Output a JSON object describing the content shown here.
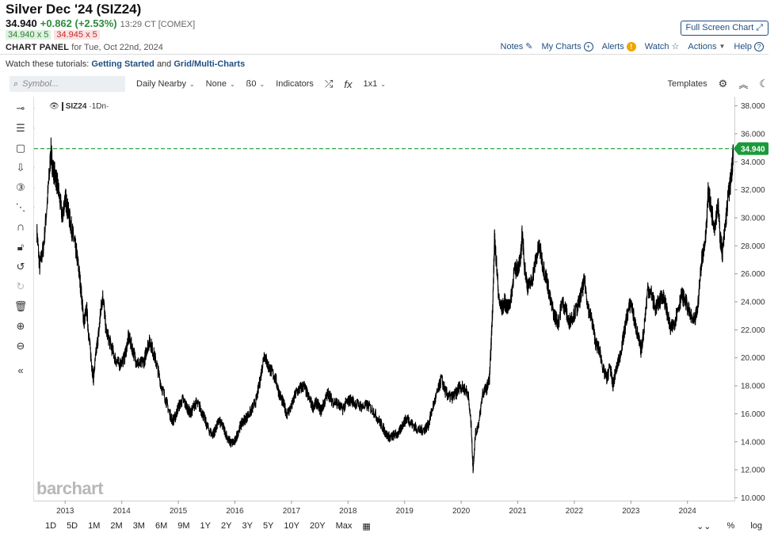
{
  "header": {
    "title": "Silver Dec '24 (SIZ24)",
    "last": "34.940",
    "change": "+0.862 (+2.53%)",
    "time": "13:29 CT [COMEX]",
    "bid": "34.940 x 5",
    "ask": "34.945 x 5",
    "panel_label": "CHART PANEL",
    "panel_date": "for Tue, Oct 22nd, 2024",
    "fullscreen": "Full Screen Chart"
  },
  "nav": {
    "notes": "Notes",
    "mycharts": "My Charts",
    "alerts": "Alerts",
    "watch": "Watch",
    "actions": "Actions",
    "help": "Help"
  },
  "tutorials": {
    "prefix": "Watch these tutorials:",
    "link1": "Getting Started",
    "joiner": "and",
    "link2": "Grid/Multi-Charts"
  },
  "toolbar": {
    "search_placeholder": "Symbol...",
    "daily": "Daily Nearby",
    "none": "None",
    "bars": "ß0",
    "indicators": "Indicators",
    "fx": "fx",
    "layout": "1x1",
    "templates": "Templates"
  },
  "legend": {
    "symbol": "SIZ24",
    "interval": "·1Dn·"
  },
  "watermark": "barchart",
  "periods": [
    "1D",
    "5D",
    "1M",
    "2M",
    "3M",
    "6M",
    "9M",
    "1Y",
    "2Y",
    "3Y",
    "5Y",
    "10Y",
    "20Y",
    "Max"
  ],
  "bottom_right": {
    "percent": "%",
    "log": "log"
  },
  "colors": {
    "price_line": "#000000",
    "last_line": "#1a9a3a",
    "last_label_bg": "#1a9a3a"
  },
  "chart_data": {
    "type": "line",
    "series": [
      {
        "name": "SIZ24",
        "points": [
          [
            2012.5,
            29.0
          ],
          [
            2012.55,
            26.5
          ],
          [
            2012.62,
            28.0
          ],
          [
            2012.7,
            32.0
          ],
          [
            2012.75,
            34.8
          ],
          [
            2012.78,
            33.5
          ],
          [
            2012.83,
            33.0
          ],
          [
            2012.88,
            32.0
          ],
          [
            2012.95,
            30.0
          ],
          [
            2013.0,
            31.5
          ],
          [
            2013.05,
            30.5
          ],
          [
            2013.1,
            29.5
          ],
          [
            2013.15,
            28.5
          ],
          [
            2013.2,
            27.5
          ],
          [
            2013.25,
            26.0
          ],
          [
            2013.3,
            24.0
          ],
          [
            2013.33,
            22.5
          ],
          [
            2013.38,
            23.5
          ],
          [
            2013.42,
            21.5
          ],
          [
            2013.47,
            19.5
          ],
          [
            2013.5,
            18.5
          ],
          [
            2013.55,
            20.5
          ],
          [
            2013.6,
            22.0
          ],
          [
            2013.63,
            23.5
          ],
          [
            2013.67,
            24.5
          ],
          [
            2013.72,
            22.0
          ],
          [
            2013.8,
            21.0
          ],
          [
            2013.88,
            20.0
          ],
          [
            2013.95,
            19.5
          ],
          [
            2014.05,
            20.0
          ],
          [
            2014.12,
            21.5
          ],
          [
            2014.18,
            20.8
          ],
          [
            2014.25,
            19.8
          ],
          [
            2014.32,
            19.5
          ],
          [
            2014.4,
            19.8
          ],
          [
            2014.45,
            20.8
          ],
          [
            2014.5,
            21.2
          ],
          [
            2014.55,
            20.5
          ],
          [
            2014.62,
            19.5
          ],
          [
            2014.7,
            18.0
          ],
          [
            2014.78,
            17.0
          ],
          [
            2014.85,
            16.0
          ],
          [
            2014.9,
            15.5
          ],
          [
            2014.95,
            15.8
          ],
          [
            2015.0,
            16.5
          ],
          [
            2015.08,
            17.0
          ],
          [
            2015.15,
            16.5
          ],
          [
            2015.22,
            16.0
          ],
          [
            2015.3,
            16.8
          ],
          [
            2015.38,
            16.5
          ],
          [
            2015.45,
            15.8
          ],
          [
            2015.52,
            15.0
          ],
          [
            2015.6,
            14.5
          ],
          [
            2015.65,
            14.8
          ],
          [
            2015.72,
            15.5
          ],
          [
            2015.8,
            15.0
          ],
          [
            2015.88,
            14.2
          ],
          [
            2015.93,
            13.9
          ],
          [
            2016.0,
            14.0
          ],
          [
            2016.08,
            15.0
          ],
          [
            2016.15,
            15.5
          ],
          [
            2016.22,
            15.8
          ],
          [
            2016.3,
            16.3
          ],
          [
            2016.38,
            17.0
          ],
          [
            2016.45,
            18.5
          ],
          [
            2016.52,
            20.3
          ],
          [
            2016.58,
            19.5
          ],
          [
            2016.65,
            19.0
          ],
          [
            2016.72,
            18.5
          ],
          [
            2016.78,
            17.5
          ],
          [
            2016.85,
            16.8
          ],
          [
            2016.92,
            16.0
          ],
          [
            2017.0,
            16.5
          ],
          [
            2017.08,
            17.5
          ],
          [
            2017.15,
            17.8
          ],
          [
            2017.22,
            18.0
          ],
          [
            2017.3,
            17.2
          ],
          [
            2017.38,
            16.5
          ],
          [
            2017.45,
            16.8
          ],
          [
            2017.52,
            16.2
          ],
          [
            2017.58,
            16.8
          ],
          [
            2017.65,
            17.5
          ],
          [
            2017.72,
            16.9
          ],
          [
            2017.8,
            16.8
          ],
          [
            2017.9,
            16.3
          ],
          [
            2017.97,
            16.8
          ],
          [
            2018.05,
            17.0
          ],
          [
            2018.15,
            16.7
          ],
          [
            2018.25,
            16.5
          ],
          [
            2018.35,
            16.6
          ],
          [
            2018.45,
            16.2
          ],
          [
            2018.55,
            15.5
          ],
          [
            2018.62,
            15.0
          ],
          [
            2018.68,
            14.5
          ],
          [
            2018.75,
            14.3
          ],
          [
            2018.82,
            14.5
          ],
          [
            2018.9,
            14.6
          ],
          [
            2018.97,
            15.3
          ],
          [
            2019.05,
            15.7
          ],
          [
            2019.12,
            15.3
          ],
          [
            2019.2,
            15.0
          ],
          [
            2019.28,
            14.8
          ],
          [
            2019.35,
            14.9
          ],
          [
            2019.42,
            15.2
          ],
          [
            2019.5,
            16.5
          ],
          [
            2019.58,
            17.5
          ],
          [
            2019.65,
            18.5
          ],
          [
            2019.72,
            17.6
          ],
          [
            2019.78,
            17.2
          ],
          [
            2019.85,
            17.2
          ],
          [
            2019.92,
            17.5
          ],
          [
            2019.97,
            18.0
          ],
          [
            2020.05,
            17.8
          ],
          [
            2020.12,
            17.5
          ],
          [
            2020.18,
            15.0
          ],
          [
            2020.21,
            12.0
          ],
          [
            2020.25,
            14.5
          ],
          [
            2020.32,
            15.5
          ],
          [
            2020.38,
            17.5
          ],
          [
            2020.45,
            17.8
          ],
          [
            2020.5,
            18.5
          ],
          [
            2020.53,
            21.0
          ],
          [
            2020.56,
            24.0
          ],
          [
            2020.59,
            28.5
          ],
          [
            2020.62,
            27.0
          ],
          [
            2020.67,
            24.0
          ],
          [
            2020.72,
            23.5
          ],
          [
            2020.77,
            24.0
          ],
          [
            2020.82,
            23.5
          ],
          [
            2020.88,
            24.2
          ],
          [
            2020.93,
            26.0
          ],
          [
            2021.0,
            26.5
          ],
          [
            2021.05,
            27.0
          ],
          [
            2021.08,
            29.0
          ],
          [
            2021.12,
            26.5
          ],
          [
            2021.18,
            25.0
          ],
          [
            2021.25,
            25.5
          ],
          [
            2021.32,
            27.0
          ],
          [
            2021.38,
            28.0
          ],
          [
            2021.45,
            26.5
          ],
          [
            2021.52,
            25.5
          ],
          [
            2021.58,
            24.0
          ],
          [
            2021.65,
            23.0
          ],
          [
            2021.72,
            22.5
          ],
          [
            2021.78,
            24.0
          ],
          [
            2021.85,
            23.5
          ],
          [
            2021.9,
            22.5
          ],
          [
            2021.97,
            23.0
          ],
          [
            2022.05,
            23.5
          ],
          [
            2022.12,
            24.5
          ],
          [
            2022.18,
            25.5
          ],
          [
            2022.25,
            23.5
          ],
          [
            2022.32,
            22.5
          ],
          [
            2022.38,
            21.0
          ],
          [
            2022.45,
            20.5
          ],
          [
            2022.52,
            19.0
          ],
          [
            2022.58,
            18.5
          ],
          [
            2022.63,
            19.5
          ],
          [
            2022.68,
            18.0
          ],
          [
            2022.73,
            19.0
          ],
          [
            2022.8,
            20.0
          ],
          [
            2022.87,
            21.5
          ],
          [
            2022.93,
            23.0
          ],
          [
            2023.0,
            24.0
          ],
          [
            2023.07,
            22.5
          ],
          [
            2023.13,
            21.5
          ],
          [
            2023.18,
            20.5
          ],
          [
            2023.23,
            22.0
          ],
          [
            2023.3,
            25.0
          ],
          [
            2023.37,
            24.5
          ],
          [
            2023.43,
            23.5
          ],
          [
            2023.5,
            24.0
          ],
          [
            2023.57,
            24.5
          ],
          [
            2023.63,
            23.5
          ],
          [
            2023.7,
            22.0
          ],
          [
            2023.77,
            22.5
          ],
          [
            2023.83,
            23.5
          ],
          [
            2023.9,
            24.5
          ],
          [
            2023.97,
            24.0
          ],
          [
            2024.05,
            23.0
          ],
          [
            2024.12,
            22.5
          ],
          [
            2024.18,
            23.5
          ],
          [
            2024.25,
            27.0
          ],
          [
            2024.32,
            28.5
          ],
          [
            2024.37,
            32.0
          ],
          [
            2024.42,
            30.5
          ],
          [
            2024.48,
            29.5
          ],
          [
            2024.54,
            31.0
          ],
          [
            2024.58,
            28.5
          ],
          [
            2024.62,
            27.5
          ],
          [
            2024.67,
            29.5
          ],
          [
            2024.72,
            31.5
          ],
          [
            2024.76,
            32.5
          ],
          [
            2024.79,
            33.5
          ],
          [
            2024.81,
            34.94
          ]
        ]
      }
    ],
    "last_value": 34.94,
    "last_label": "34.940",
    "x_ticks": [
      2013,
      2014,
      2015,
      2016,
      2017,
      2018,
      2019,
      2020,
      2021,
      2022,
      2023,
      2024
    ],
    "x_tick_labels": [
      "2013",
      "2014",
      "2015",
      "2016",
      "2017",
      "2018",
      "2019",
      "2020",
      "2021",
      "2022",
      "2023",
      "2024"
    ],
    "y_ticks": [
      10,
      12,
      14,
      16,
      18,
      20,
      22,
      24,
      26,
      28,
      30,
      32,
      34,
      36,
      38
    ],
    "y_tick_labels": [
      "10.000",
      "12.000",
      "14.000",
      "16.000",
      "18.000",
      "20.000",
      "22.000",
      "24.000",
      "26.000",
      "28.000",
      "30.000",
      "32.000",
      "34.000",
      "36.000",
      "38.000"
    ],
    "ylim": [
      9.8,
      38.6
    ],
    "xlim": [
      2012.45,
      2024.83
    ],
    "grid": false,
    "legend": "top-left"
  }
}
